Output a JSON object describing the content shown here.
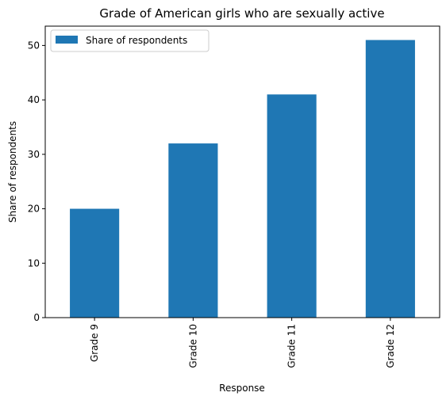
{
  "chart_data": {
    "type": "bar",
    "title": "Grade of American girls who are sexually active",
    "xlabel": "Response",
    "ylabel": "Share of respondents",
    "categories": [
      "Grade 9",
      "Grade 10",
      "Grade 11",
      "Grade 12"
    ],
    "series": [
      {
        "name": "Share of respondents",
        "values": [
          20,
          32,
          41,
          51
        ],
        "color": "#1f77b4"
      }
    ],
    "ylim": [
      0,
      53.55
    ],
    "yticks": [
      0,
      10,
      20,
      30,
      40,
      50
    ],
    "legend": {
      "position": "top-left"
    },
    "grid": false
  }
}
